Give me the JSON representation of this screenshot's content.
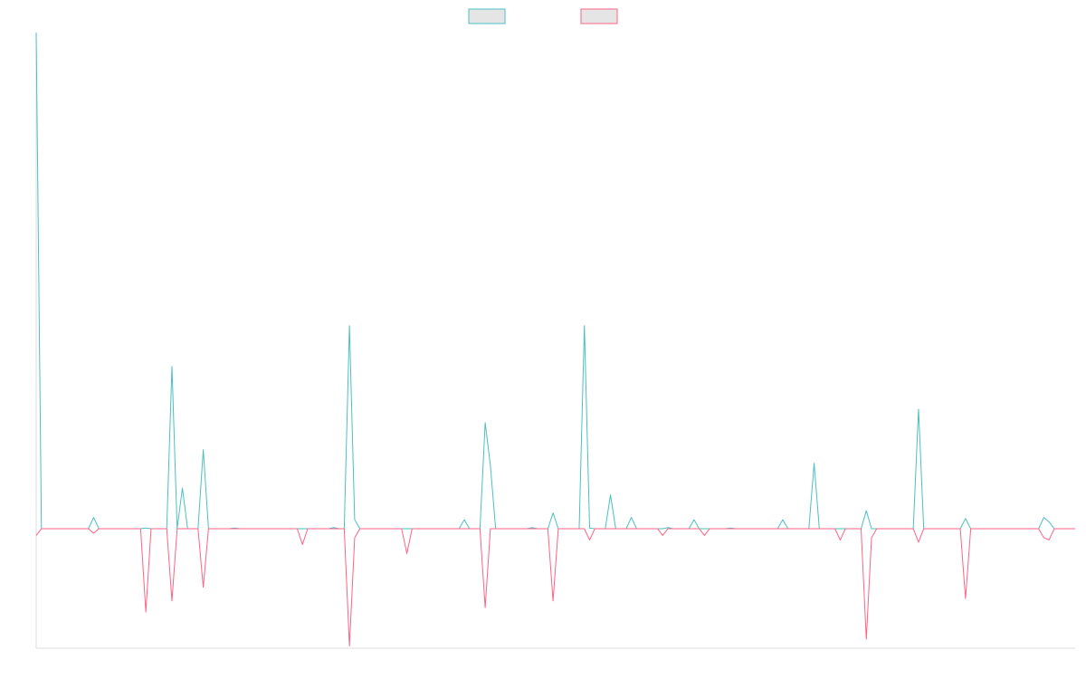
{
  "chart_data": {
    "type": "line",
    "title": "",
    "xlabel": "",
    "ylabel": "",
    "legend_placement": "top-center",
    "grid": false,
    "x_count": 200,
    "ylim": [
      -530,
      2200
    ],
    "series": [
      {
        "name": "",
        "color": "#4bc0c0",
        "fill": "#e5e5e5",
        "points": [
          [
            0,
            2200
          ],
          [
            1,
            0
          ],
          [
            11,
            50
          ],
          [
            21,
            3
          ],
          [
            26,
            720
          ],
          [
            28,
            180
          ],
          [
            32,
            350
          ],
          [
            38,
            3
          ],
          [
            57,
            5
          ],
          [
            60,
            900
          ],
          [
            61,
            40
          ],
          [
            82,
            40
          ],
          [
            86,
            470
          ],
          [
            87,
            280
          ],
          [
            95,
            5
          ],
          [
            99,
            70
          ],
          [
            105,
            900
          ],
          [
            106,
            3
          ],
          [
            110,
            150
          ],
          [
            114,
            50
          ],
          [
            121,
            5
          ],
          [
            126,
            40
          ],
          [
            133,
            3
          ],
          [
            143,
            40
          ],
          [
            149,
            290
          ],
          [
            159,
            80
          ],
          [
            169,
            530
          ],
          [
            178,
            45
          ],
          [
            193,
            50
          ],
          [
            194,
            30
          ]
        ]
      },
      {
        "name": "",
        "color": "#ff6384",
        "fill": "#e5e5e5",
        "points": [
          [
            0,
            -30
          ],
          [
            1,
            0
          ],
          [
            11,
            -20
          ],
          [
            21,
            -370
          ],
          [
            22,
            0
          ],
          [
            26,
            -320
          ],
          [
            32,
            -260
          ],
          [
            51,
            -70
          ],
          [
            60,
            -520
          ],
          [
            61,
            -40
          ],
          [
            71,
            -110
          ],
          [
            86,
            -350
          ],
          [
            99,
            -320
          ],
          [
            106,
            -50
          ],
          [
            120,
            -30
          ],
          [
            128,
            -30
          ],
          [
            154,
            -50
          ],
          [
            159,
            -490
          ],
          [
            160,
            -40
          ],
          [
            169,
            -60
          ],
          [
            178,
            -310
          ],
          [
            193,
            -40
          ],
          [
            194,
            -50
          ]
        ]
      }
    ]
  }
}
